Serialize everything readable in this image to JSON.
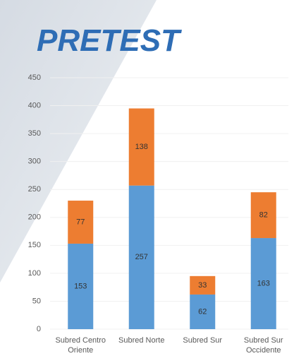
{
  "chart_data": {
    "type": "stacked_bar",
    "title": "PRETEST",
    "categories": [
      "Subred Centro Oriente",
      "Subred Norte",
      "Subred Sur",
      "Subred Sur Occidente"
    ],
    "series": [
      {
        "color": "#5b9bd5",
        "values": [
          153,
          257,
          62,
          163
        ]
      },
      {
        "color": "#ed7d31",
        "values": [
          77,
          138,
          33,
          82
        ]
      }
    ],
    "ylim": [
      0,
      450
    ],
    "yticks": [
      0,
      50,
      100,
      150,
      200,
      250,
      300,
      350,
      400,
      450
    ],
    "grid": true
  }
}
